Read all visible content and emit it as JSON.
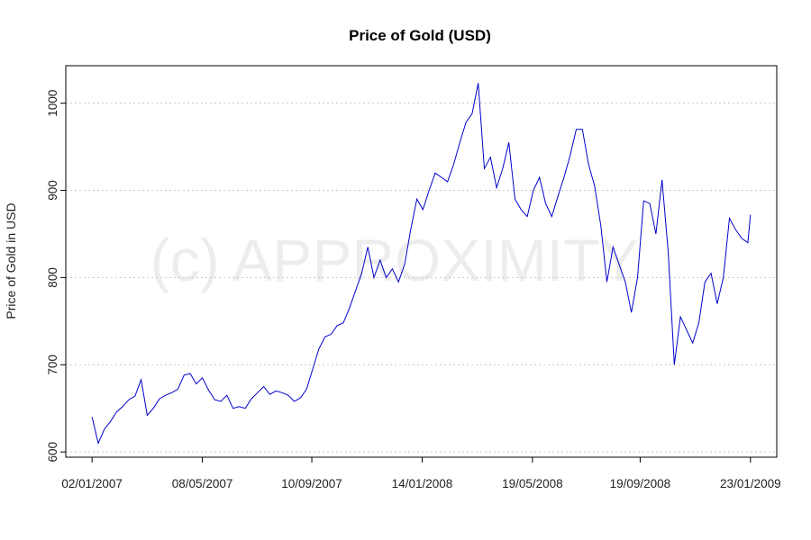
{
  "chart_data": {
    "type": "line",
    "title": "Price of Gold (USD)",
    "xlabel": "",
    "ylabel": "Price of Gold in USD",
    "watermark": "(c) APPROXIMITY",
    "ylim": [
      594,
      1043
    ],
    "xlim": [
      "2006-12-03",
      "2009-02-22"
    ],
    "yticks": [
      600,
      700,
      800,
      900,
      1000
    ],
    "xticks": [
      {
        "date": "2007-01-02",
        "label": "02/01/2007"
      },
      {
        "date": "2007-05-08",
        "label": "08/05/2007"
      },
      {
        "date": "2007-09-10",
        "label": "10/09/2007"
      },
      {
        "date": "2008-01-14",
        "label": "14/01/2008"
      },
      {
        "date": "2008-05-19",
        "label": "19/05/2008"
      },
      {
        "date": "2008-09-19",
        "label": "19/09/2008"
      },
      {
        "date": "2009-01-23",
        "label": "23/01/2009"
      }
    ],
    "grid": "horizontal dotted",
    "line_color": "#0000CC",
    "grid_color": "#C8C8C8",
    "series": [
      {
        "dates": [
          "2007-01-02",
          "2007-01-09",
          "2007-01-16",
          "2007-01-23",
          "2007-01-30",
          "2007-02-06",
          "2007-02-13",
          "2007-02-20",
          "2007-02-27",
          "2007-03-06",
          "2007-03-13",
          "2007-03-20",
          "2007-03-27",
          "2007-04-03",
          "2007-04-10",
          "2007-04-17",
          "2007-04-24",
          "2007-05-01",
          "2007-05-08",
          "2007-05-15",
          "2007-05-22",
          "2007-05-29",
          "2007-06-05",
          "2007-06-12",
          "2007-06-19",
          "2007-06-26",
          "2007-07-03",
          "2007-07-10",
          "2007-07-17",
          "2007-07-24",
          "2007-07-31",
          "2007-08-07",
          "2007-08-14",
          "2007-08-21",
          "2007-08-28",
          "2007-09-04",
          "2007-09-11",
          "2007-09-18",
          "2007-09-25",
          "2007-10-02",
          "2007-10-09",
          "2007-10-16",
          "2007-10-23",
          "2007-10-30",
          "2007-11-06",
          "2007-11-13",
          "2007-11-20",
          "2007-11-27",
          "2007-12-04",
          "2007-12-11",
          "2007-12-18",
          "2007-12-25",
          "2008-01-01",
          "2008-01-08",
          "2008-01-15",
          "2008-01-22",
          "2008-01-29",
          "2008-02-05",
          "2008-02-12",
          "2008-02-19",
          "2008-02-26",
          "2008-03-04",
          "2008-03-11",
          "2008-03-18",
          "2008-03-25",
          "2008-04-01",
          "2008-04-08",
          "2008-04-15",
          "2008-04-22",
          "2008-04-29",
          "2008-05-06",
          "2008-05-13",
          "2008-05-20",
          "2008-05-27",
          "2008-06-03",
          "2008-06-10",
          "2008-06-17",
          "2008-06-24",
          "2008-07-01",
          "2008-07-08",
          "2008-07-15",
          "2008-07-22",
          "2008-07-29",
          "2008-08-05",
          "2008-08-12",
          "2008-08-19",
          "2008-08-26",
          "2008-09-02",
          "2008-09-09",
          "2008-09-16",
          "2008-09-23",
          "2008-09-30",
          "2008-10-07",
          "2008-10-14",
          "2008-10-21",
          "2008-10-28",
          "2008-11-04",
          "2008-11-11",
          "2008-11-18",
          "2008-11-25",
          "2008-12-02",
          "2008-12-09",
          "2008-12-16",
          "2008-12-23",
          "2008-12-30",
          "2009-01-06",
          "2009-01-13",
          "2009-01-20",
          "2009-01-23"
        ],
        "values": [
          640,
          610,
          626,
          635,
          646,
          652,
          660,
          664,
          683,
          642,
          650,
          661,
          665,
          668,
          672,
          688,
          690,
          678,
          685,
          671,
          660,
          658,
          665,
          650,
          652,
          650,
          661,
          668,
          675,
          666,
          670,
          668,
          665,
          658,
          662,
          672,
          695,
          718,
          732,
          735,
          745,
          748,
          765,
          785,
          805,
          835,
          800,
          820,
          800,
          810,
          795,
          815,
          855,
          890,
          878,
          900,
          920,
          915,
          910,
          930,
          955,
          978,
          988,
          1023,
          925,
          938,
          903,
          925,
          955,
          890,
          878,
          870,
          900,
          915,
          885,
          870,
          893,
          915,
          940,
          970,
          970,
          930,
          905,
          860,
          795,
          835,
          815,
          795,
          760,
          800,
          888,
          885,
          850,
          912,
          830,
          700,
          755,
          740,
          725,
          748,
          795,
          805,
          770,
          800,
          868,
          855,
          845,
          840,
          872
        ]
      }
    ]
  }
}
